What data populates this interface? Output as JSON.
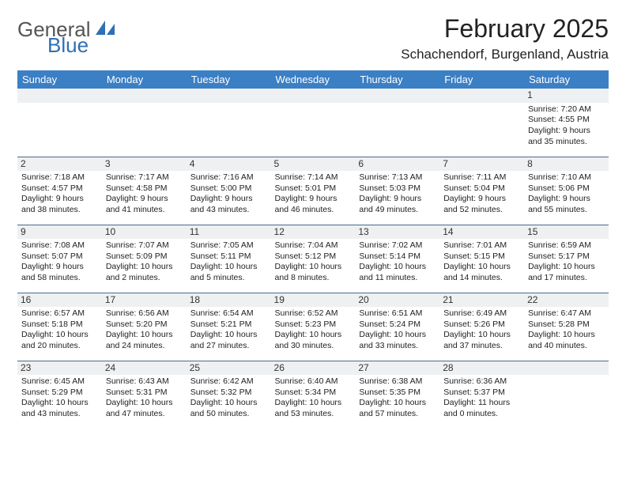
{
  "logo": {
    "word1": "General",
    "word2": "Blue",
    "icon_color": "#2f6fb3",
    "text_color_gray": "#555555",
    "text_color_blue": "#2f6fb3"
  },
  "title": "February 2025",
  "location": "Schachendorf, Burgenland, Austria",
  "header_bg": "#3b7fc4",
  "daynum_bg": "#eef0f2",
  "border_color": "#4a6a8a",
  "day_headers": [
    "Sunday",
    "Monday",
    "Tuesday",
    "Wednesday",
    "Thursday",
    "Friday",
    "Saturday"
  ],
  "weeks": [
    [
      null,
      null,
      null,
      null,
      null,
      null,
      {
        "n": "1",
        "sr": "7:20 AM",
        "ss": "4:55 PM",
        "dl": "9 hours and 35 minutes."
      }
    ],
    [
      {
        "n": "2",
        "sr": "7:18 AM",
        "ss": "4:57 PM",
        "dl": "9 hours and 38 minutes."
      },
      {
        "n": "3",
        "sr": "7:17 AM",
        "ss": "4:58 PM",
        "dl": "9 hours and 41 minutes."
      },
      {
        "n": "4",
        "sr": "7:16 AM",
        "ss": "5:00 PM",
        "dl": "9 hours and 43 minutes."
      },
      {
        "n": "5",
        "sr": "7:14 AM",
        "ss": "5:01 PM",
        "dl": "9 hours and 46 minutes."
      },
      {
        "n": "6",
        "sr": "7:13 AM",
        "ss": "5:03 PM",
        "dl": "9 hours and 49 minutes."
      },
      {
        "n": "7",
        "sr": "7:11 AM",
        "ss": "5:04 PM",
        "dl": "9 hours and 52 minutes."
      },
      {
        "n": "8",
        "sr": "7:10 AM",
        "ss": "5:06 PM",
        "dl": "9 hours and 55 minutes."
      }
    ],
    [
      {
        "n": "9",
        "sr": "7:08 AM",
        "ss": "5:07 PM",
        "dl": "9 hours and 58 minutes."
      },
      {
        "n": "10",
        "sr": "7:07 AM",
        "ss": "5:09 PM",
        "dl": "10 hours and 2 minutes."
      },
      {
        "n": "11",
        "sr": "7:05 AM",
        "ss": "5:11 PM",
        "dl": "10 hours and 5 minutes."
      },
      {
        "n": "12",
        "sr": "7:04 AM",
        "ss": "5:12 PM",
        "dl": "10 hours and 8 minutes."
      },
      {
        "n": "13",
        "sr": "7:02 AM",
        "ss": "5:14 PM",
        "dl": "10 hours and 11 minutes."
      },
      {
        "n": "14",
        "sr": "7:01 AM",
        "ss": "5:15 PM",
        "dl": "10 hours and 14 minutes."
      },
      {
        "n": "15",
        "sr": "6:59 AM",
        "ss": "5:17 PM",
        "dl": "10 hours and 17 minutes."
      }
    ],
    [
      {
        "n": "16",
        "sr": "6:57 AM",
        "ss": "5:18 PM",
        "dl": "10 hours and 20 minutes."
      },
      {
        "n": "17",
        "sr": "6:56 AM",
        "ss": "5:20 PM",
        "dl": "10 hours and 24 minutes."
      },
      {
        "n": "18",
        "sr": "6:54 AM",
        "ss": "5:21 PM",
        "dl": "10 hours and 27 minutes."
      },
      {
        "n": "19",
        "sr": "6:52 AM",
        "ss": "5:23 PM",
        "dl": "10 hours and 30 minutes."
      },
      {
        "n": "20",
        "sr": "6:51 AM",
        "ss": "5:24 PM",
        "dl": "10 hours and 33 minutes."
      },
      {
        "n": "21",
        "sr": "6:49 AM",
        "ss": "5:26 PM",
        "dl": "10 hours and 37 minutes."
      },
      {
        "n": "22",
        "sr": "6:47 AM",
        "ss": "5:28 PM",
        "dl": "10 hours and 40 minutes."
      }
    ],
    [
      {
        "n": "23",
        "sr": "6:45 AM",
        "ss": "5:29 PM",
        "dl": "10 hours and 43 minutes."
      },
      {
        "n": "24",
        "sr": "6:43 AM",
        "ss": "5:31 PM",
        "dl": "10 hours and 47 minutes."
      },
      {
        "n": "25",
        "sr": "6:42 AM",
        "ss": "5:32 PM",
        "dl": "10 hours and 50 minutes."
      },
      {
        "n": "26",
        "sr": "6:40 AM",
        "ss": "5:34 PM",
        "dl": "10 hours and 53 minutes."
      },
      {
        "n": "27",
        "sr": "6:38 AM",
        "ss": "5:35 PM",
        "dl": "10 hours and 57 minutes."
      },
      {
        "n": "28",
        "sr": "6:36 AM",
        "ss": "5:37 PM",
        "dl": "11 hours and 0 minutes."
      },
      null
    ]
  ],
  "labels": {
    "sunrise": "Sunrise: ",
    "sunset": "Sunset: ",
    "daylight": "Daylight: "
  }
}
